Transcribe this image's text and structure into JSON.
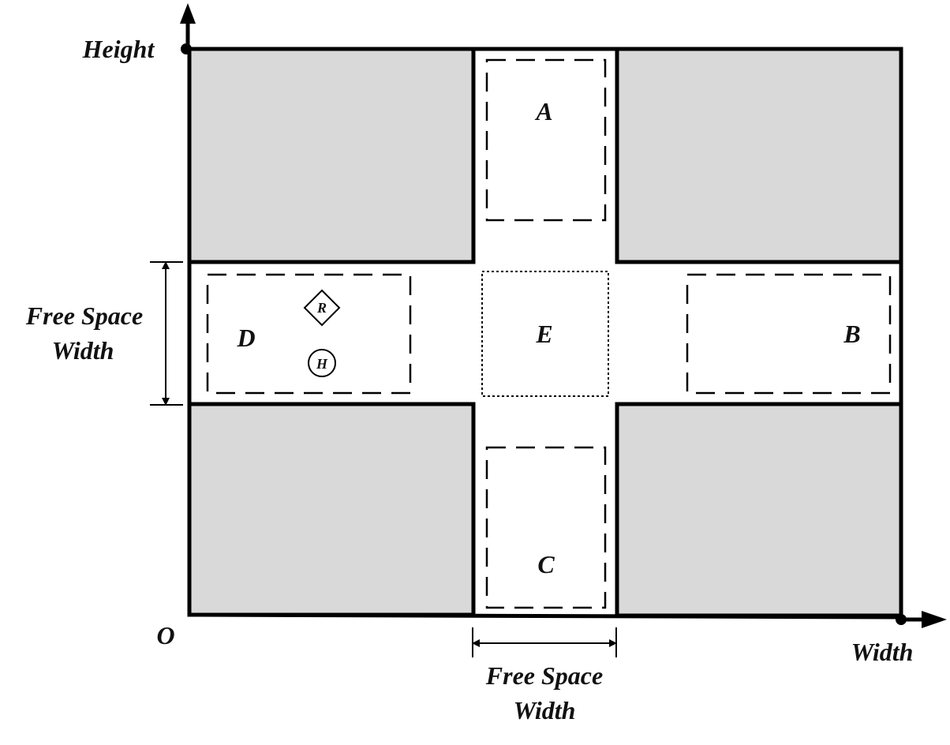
{
  "diagram": {
    "axes": {
      "y_label": "Height",
      "x_label": "Width",
      "origin_label": "O"
    },
    "zones": {
      "A": "A",
      "B": "B",
      "C": "C",
      "D": "D",
      "E": "E"
    },
    "dimensions": {
      "vertical_line1": "Free Space",
      "vertical_line2": "Width",
      "horizontal_line1": "Free Space",
      "horizontal_line2": "Width"
    },
    "markers": {
      "robot": "R",
      "human": "H"
    },
    "colors": {
      "obstacle_fill": "#d9d9d9",
      "stroke": "#000000",
      "background": "#ffffff"
    }
  }
}
